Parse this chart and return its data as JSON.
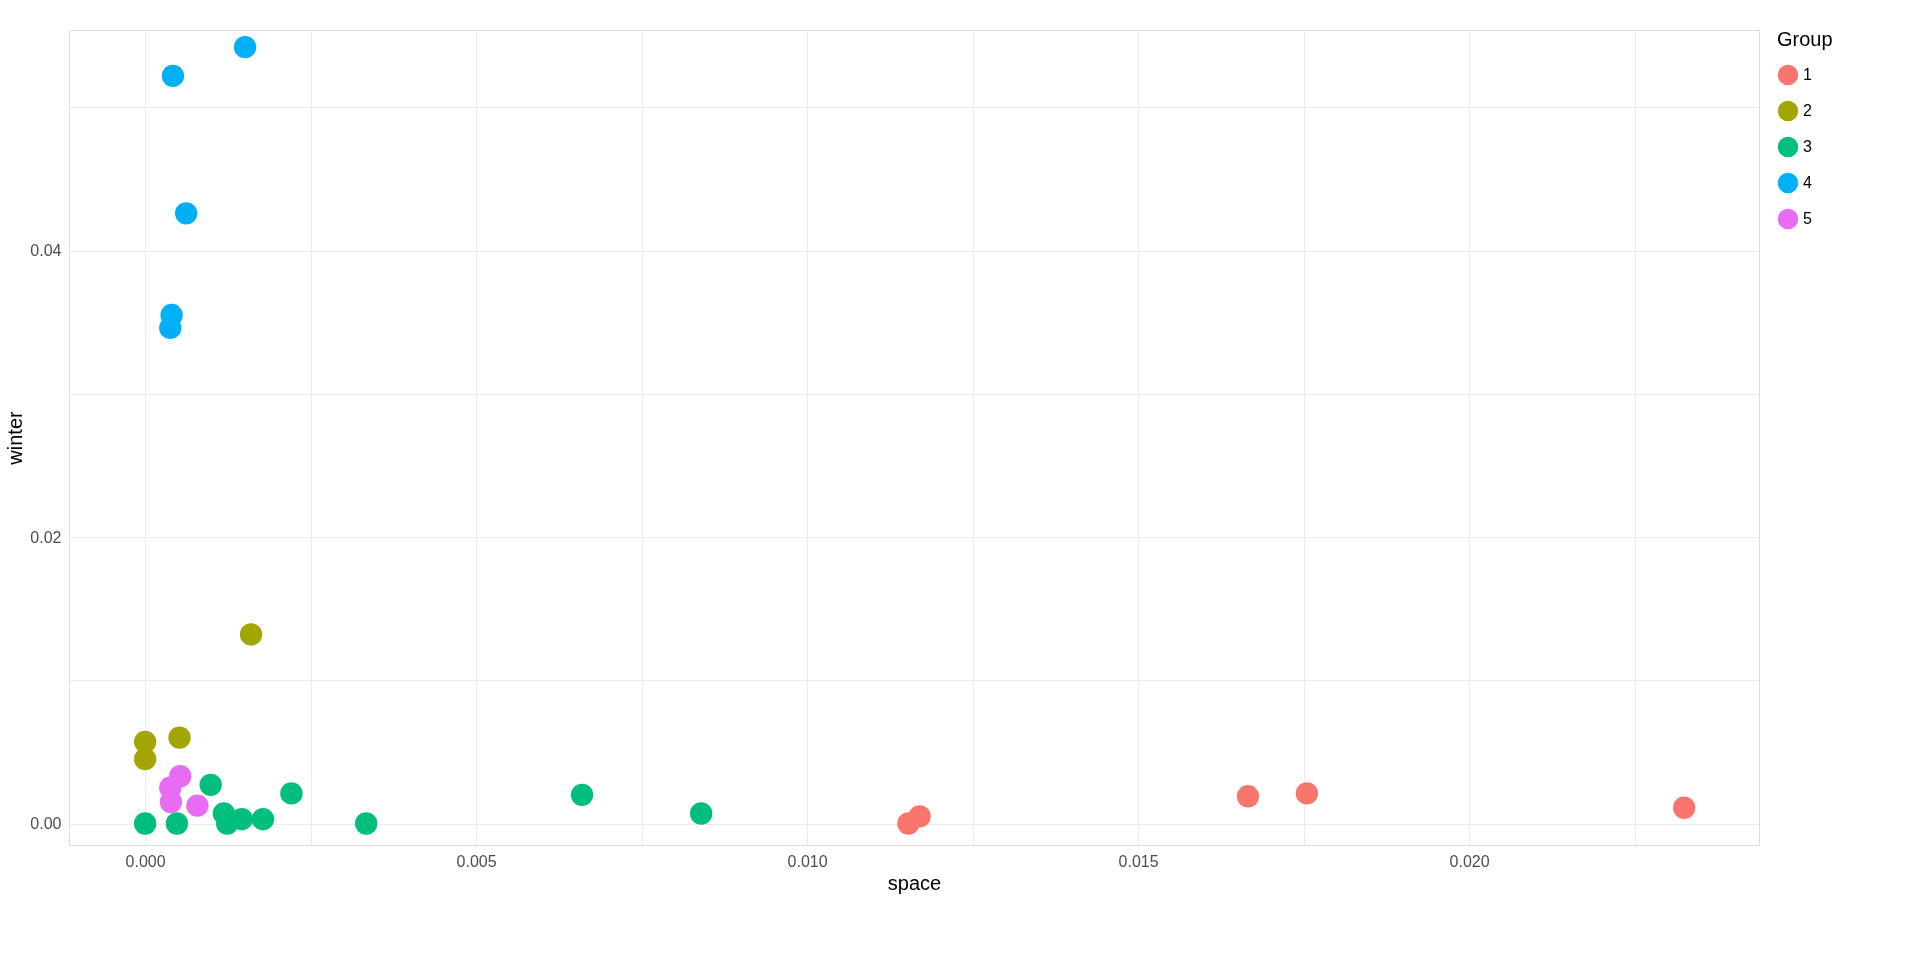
{
  "chart_data": {
    "type": "scatter",
    "xlabel": "space",
    "ylabel": "winter",
    "legend_title": "Group",
    "legend": "right",
    "grid": true,
    "marker": "circle",
    "xlim": [
      -0.00115,
      0.02438
    ],
    "ylim": [
      -0.0015,
      0.0554
    ],
    "xticks": [
      {
        "value": 0,
        "label": "0.000"
      },
      {
        "value": 0.0025,
        "label": null
      },
      {
        "value": 0.005,
        "label": "0.005"
      },
      {
        "value": 0.0075,
        "label": null
      },
      {
        "value": 0.01,
        "label": "0.010"
      },
      {
        "value": 0.0125,
        "label": null
      },
      {
        "value": 0.015,
        "label": "0.015"
      },
      {
        "value": 0.0175,
        "label": null
      },
      {
        "value": 0.02,
        "label": "0.020"
      },
      {
        "value": 0.0225,
        "label": null
      }
    ],
    "yticks": [
      {
        "value": 0,
        "label": "0.00"
      },
      {
        "value": 0.01,
        "label": null
      },
      {
        "value": 0.02,
        "label": "0.02"
      },
      {
        "value": 0.03,
        "label": null
      },
      {
        "value": 0.04,
        "label": "0.04"
      },
      {
        "value": 0.05,
        "label": null
      }
    ],
    "series": [
      {
        "name": "1",
        "color": "#f8766d",
        "x": [
          0.01153,
          0.0117,
          0.01666,
          0.01755,
          0.02325
        ],
        "values": [
          0,
          0.0005,
          0.0019,
          0.0021,
          0.0011
        ]
      },
      {
        "name": "2",
        "color": "#a3a500",
        "x": [
          0.0016,
          0,
          0,
          0.00052
        ],
        "values": [
          0.0132,
          0.0057,
          0.0045,
          0.006
        ]
      },
      {
        "name": "3",
        "color": "#00bf7d",
        "x": [
          0,
          0.00048,
          0.00099,
          0.00119,
          0.00124,
          0.00146,
          0.00178,
          0.00221,
          0.00334,
          0.0066,
          0.0084
        ],
        "values": [
          0,
          0,
          0.0027,
          0.0007,
          0,
          0.0003,
          0.0003,
          0.0021,
          0,
          0.002,
          0.0007
        ]
      },
      {
        "name": "4",
        "color": "#00b0f6",
        "x": [
          0.00042,
          0.00151,
          0.00062,
          0.0004,
          0.00038
        ],
        "values": [
          0.0522,
          0.0542,
          0.0426,
          0.0355,
          0.0346
        ]
      },
      {
        "name": "5",
        "color": "#e76bf3",
        "x": [
          0.00053,
          0.00038,
          0.00039,
          0.00079
        ],
        "values": [
          0.0033,
          0.0025,
          0.0015,
          0.00125
        ]
      }
    ]
  }
}
